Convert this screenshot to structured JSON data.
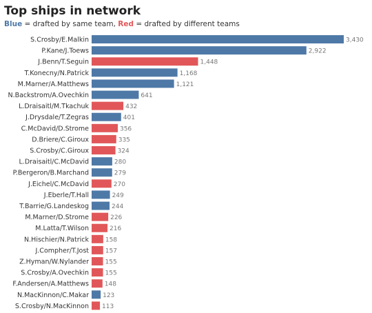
{
  "chart_data": {
    "type": "bar",
    "orientation": "horizontal",
    "title": "Top ships in network",
    "subtitle": {
      "blue_word": "Blue",
      "blue_text": " = drafted by same team, ",
      "red_word": "Red",
      "red_text": " = drafted by different teams"
    },
    "colors": {
      "same": "#4e79a7",
      "different": "#e15759"
    },
    "categories": [
      "S.Crosby/E.Malkin",
      "P.Kane/J.Toews",
      "J.Benn/T.Seguin",
      "T.Konecny/N.Patrick",
      "M.Marner/A.Matthews",
      "N.Backstrom/A.Ovechkin",
      "L.Draisaitl/M.Tkachuk",
      "J.Drysdale/T.Zegras",
      "C.McDavid/D.Strome",
      "D.Briere/C.Giroux",
      "S.Crosby/C.Giroux",
      "L.Draisaitl/C.McDavid",
      "P.Bergeron/B.Marchand",
      "J.Eichel/C.McDavid",
      "J.Eberle/T.Hall",
      "T.Barrie/G.Landeskog",
      "M.Marner/D.Strome",
      "M.Latta/T.Wilson",
      "N.Hischier/N.Patrick",
      "J.Compher/T.Jost",
      "Z.Hyman/W.Nylander",
      "S.Crosby/A.Ovechkin",
      "F.Andersen/A.Matthews",
      "N.MacKinnon/C.Makar",
      "S.Crosby/N.MacKinnon"
    ],
    "values": [
      3430,
      2922,
      1448,
      1168,
      1121,
      641,
      432,
      401,
      356,
      335,
      324,
      280,
      279,
      270,
      249,
      244,
      226,
      216,
      158,
      157,
      155,
      155,
      148,
      123,
      113
    ],
    "value_labels": [
      "3,430",
      "2,922",
      "1,448",
      "1,168",
      "1,121",
      "641",
      "432",
      "401",
      "356",
      "335",
      "324",
      "280",
      "279",
      "270",
      "249",
      "244",
      "226",
      "216",
      "158",
      "157",
      "155",
      "155",
      "148",
      "123",
      "113"
    ],
    "groups": [
      "same",
      "same",
      "different",
      "same",
      "same",
      "same",
      "different",
      "same",
      "different",
      "different",
      "different",
      "same",
      "same",
      "different",
      "same",
      "same",
      "different",
      "different",
      "different",
      "different",
      "different",
      "different",
      "different",
      "same",
      "different"
    ],
    "xlim": [
      0,
      3430
    ],
    "grid": false
  }
}
